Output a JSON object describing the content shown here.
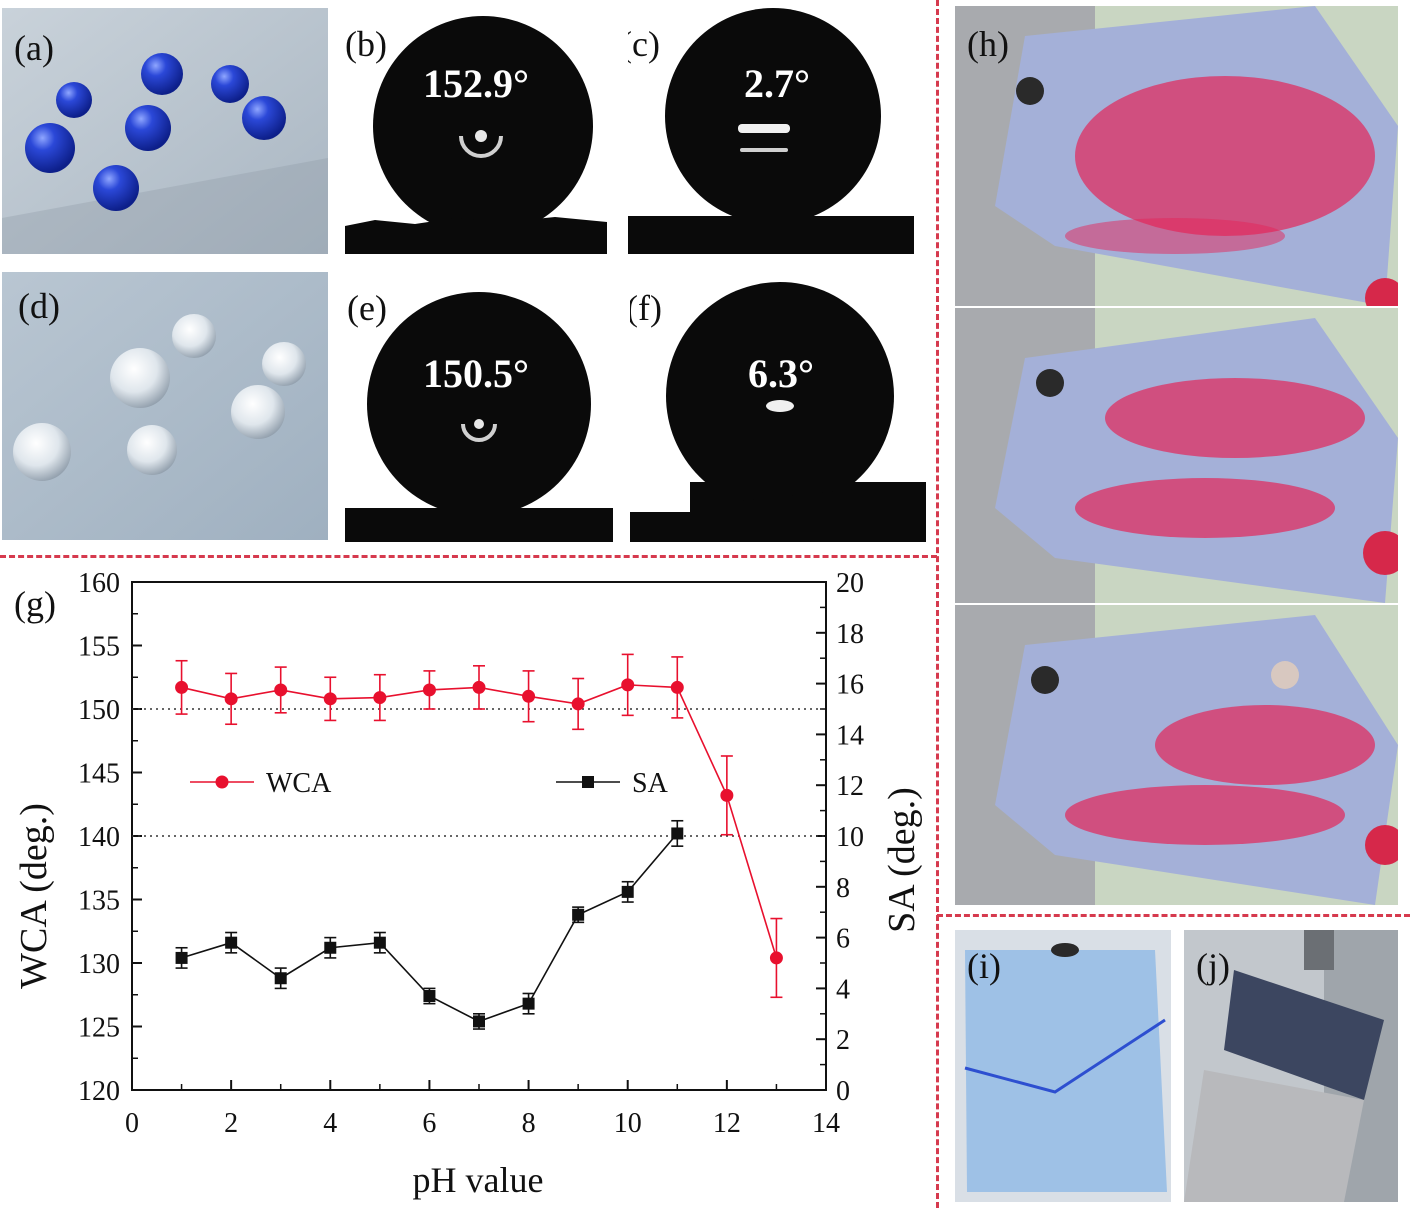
{
  "panels": {
    "a": {
      "label": "(a)"
    },
    "b": {
      "label": "(b)",
      "angle": "152.9°"
    },
    "c": {
      "label": "(c)",
      "angle": "2.7°"
    },
    "d": {
      "label": "(d)"
    },
    "e": {
      "label": "(e)",
      "angle": "150.5°"
    },
    "f": {
      "label": "(f)",
      "angle": "6.3°"
    },
    "g": {
      "label": "(g)"
    },
    "h": {
      "label": "(h)"
    },
    "i": {
      "label": "(i)"
    },
    "j": {
      "label": "(j)"
    }
  },
  "colors": {
    "wca": "#e8102e",
    "sa": "#111111",
    "divider": "#d63a4e",
    "blue_droplet": "#1f3fc8",
    "red_powder": "#e3265a"
  },
  "chart_data": {
    "type": "line",
    "xlabel": "pH value",
    "ylabel": "WCA (deg.)",
    "ylabel_right": "SA (deg.)",
    "xlim": [
      0,
      14
    ],
    "ylim": [
      120,
      160
    ],
    "ylim_right": [
      0,
      20
    ],
    "xticks": [
      "0",
      "2",
      "4",
      "6",
      "8",
      "10",
      "12",
      "14"
    ],
    "yticks": [
      "120",
      "125",
      "130",
      "135",
      "140",
      "145",
      "150",
      "155",
      "160"
    ],
    "yticks_right": [
      "0",
      "2",
      "4",
      "6",
      "8",
      "10",
      "12",
      "14",
      "16",
      "18",
      "20"
    ],
    "reference_lines": [
      150,
      140
    ],
    "legend": [
      {
        "name": "WCA",
        "marker": "circle"
      },
      {
        "name": "SA",
        "marker": "square"
      }
    ],
    "series": [
      {
        "name": "WCA",
        "axis": "left",
        "marker": "circle",
        "x": [
          1,
          2,
          3,
          4,
          5,
          6,
          7,
          8,
          9,
          10,
          11,
          12,
          13
        ],
        "y": [
          151.7,
          150.8,
          151.5,
          150.8,
          150.9,
          151.5,
          151.7,
          151.0,
          150.4,
          151.9,
          151.7,
          143.2,
          130.4
        ],
        "err": [
          2.1,
          2.0,
          1.8,
          1.7,
          1.8,
          1.5,
          1.7,
          2.0,
          2.0,
          2.4,
          2.4,
          3.1,
          3.1
        ]
      },
      {
        "name": "SA",
        "axis": "right",
        "marker": "square",
        "x": [
          1,
          2,
          3,
          4,
          5,
          6,
          7,
          8,
          9,
          10,
          11
        ],
        "y": [
          5.2,
          5.8,
          4.4,
          5.6,
          5.8,
          3.7,
          2.7,
          3.4,
          6.9,
          7.8,
          10.1
        ],
        "err": [
          0.4,
          0.4,
          0.4,
          0.4,
          0.4,
          0.3,
          0.3,
          0.4,
          0.3,
          0.4,
          0.5
        ]
      }
    ]
  }
}
